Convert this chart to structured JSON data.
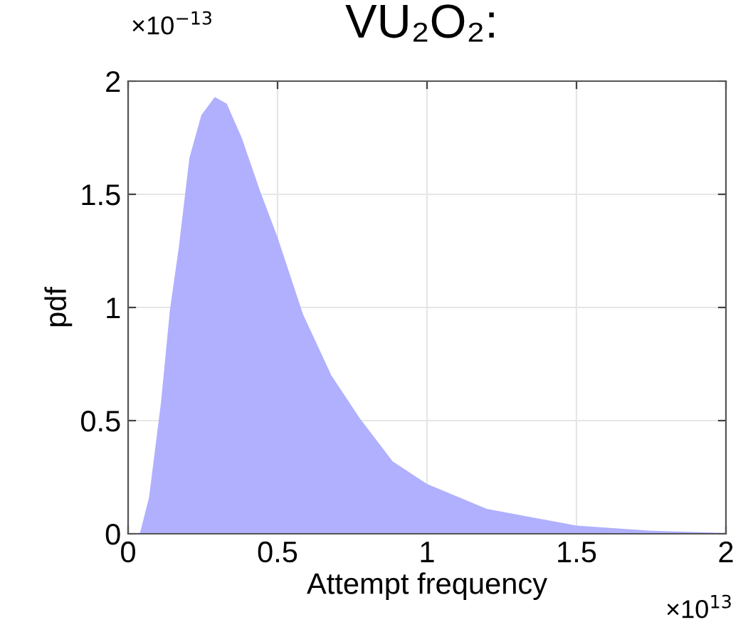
{
  "chart_data": {
    "type": "area",
    "title": "VU₂O₂:",
    "xlabel": "Attempt frequency",
    "ylabel": "pdf",
    "annotations": [
      "×10$^{−13}$",
      "×10$^{13}$"
    ],
    "x": [
      0,
      0.04,
      0.07,
      0.11,
      0.14,
      0.17,
      0.205,
      0.245,
      0.29,
      0.33,
      0.38,
      0.44,
      0.5,
      0.585,
      0.68,
      0.775,
      0.885,
      1.0,
      1.2,
      1.5,
      1.75,
      2.0
    ],
    "series": [
      {
        "color": "#b0b0ff",
        "values": [
          0,
          0.005,
          0.16,
          0.58,
          0.99,
          1.27,
          1.66,
          1.85,
          1.93,
          1.9,
          1.75,
          1.52,
          1.31,
          0.97,
          0.7,
          0.51,
          0.32,
          0.22,
          0.11,
          0.036,
          0.013,
          0.004
        ]
      }
    ],
    "xlim": [
      0,
      2
    ],
    "ylim": [
      0,
      2
    ],
    "xticks": [
      0,
      0.5,
      1,
      1.5,
      2
    ],
    "yticks": [
      0,
      0.5,
      1,
      1.5,
      2
    ],
    "grid": true
  }
}
